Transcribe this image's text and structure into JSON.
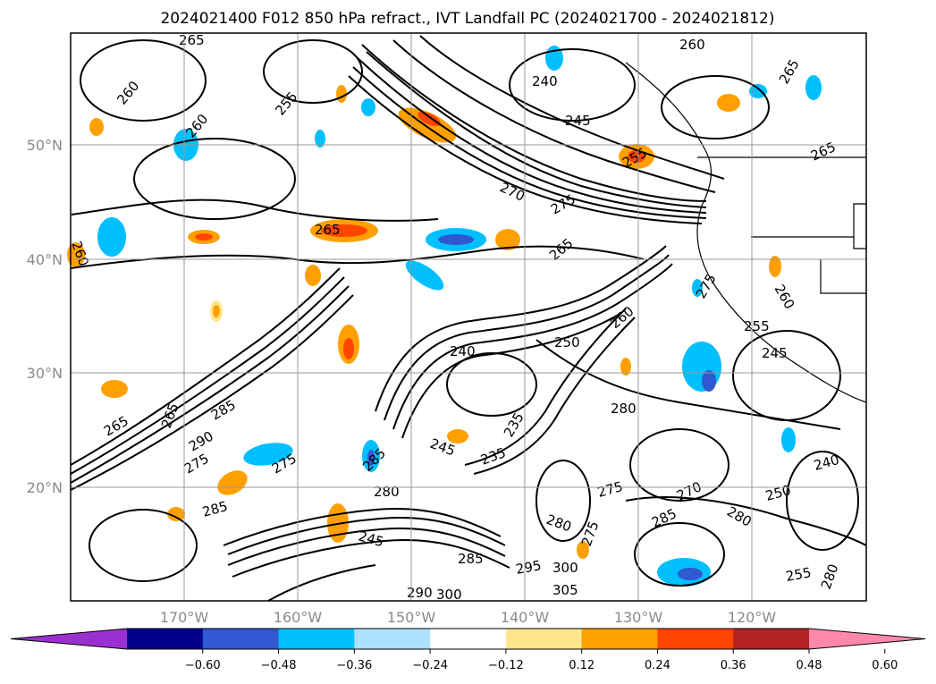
{
  "title": "2024021400 F012 850 hPa refract., IVT Landfall PC (2024021700 - 2024021812)",
  "lat_labels": [
    "50°N",
    "40°N",
    "30°N",
    "20°N"
  ],
  "lon_labels": [
    "170°W",
    "160°W",
    "150°W",
    "140°W",
    "130°W",
    "120°W"
  ],
  "colorbar": {
    "ticks": [
      "−0.60",
      "−0.48",
      "−0.36",
      "−0.24",
      "−0.12",
      "0.12",
      "0.24",
      "0.36",
      "0.48",
      "0.60"
    ],
    "colors": [
      "#9b30d0",
      "#00008b",
      "#3058d0",
      "#00bfff",
      "#aee0ff",
      "#ffffff",
      "#ffe68c",
      "#ffa000",
      "#ff4500",
      "#b22222",
      "#ff88aa"
    ]
  },
  "contour_labels": [
    "265",
    "260",
    "260",
    "255",
    "240",
    "245",
    "265",
    "255",
    "260",
    "265",
    "270",
    "275",
    "265",
    "260",
    "275",
    "260",
    "255",
    "245",
    "250",
    "240",
    "260",
    "265",
    "285",
    "265",
    "275",
    "290",
    "275",
    "285",
    "280",
    "285",
    "265",
    "245",
    "235",
    "280",
    "235",
    "270",
    "280",
    "250",
    "240",
    "275",
    "280",
    "285",
    "295",
    "300",
    "305",
    "290",
    "300",
    "285",
    "275",
    "245",
    "255",
    "280"
  ],
  "fill_legend": "IVT Landfall PC"
}
